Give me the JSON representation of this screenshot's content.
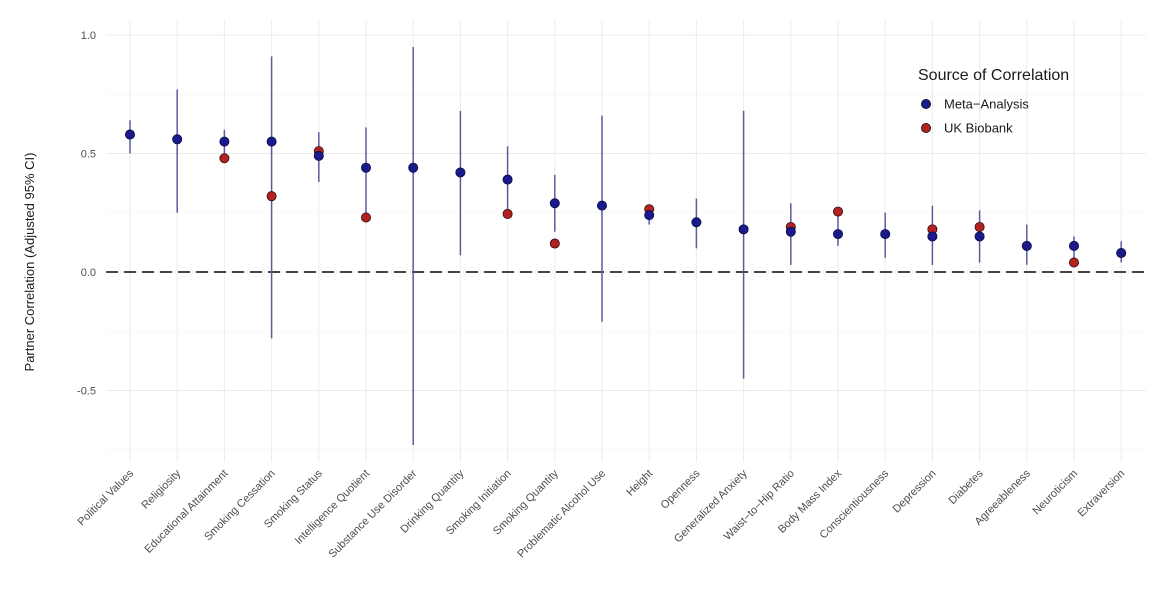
{
  "chart_data": {
    "type": "scatter",
    "ylabel": "Partner Correlation (Adjusted 95% CI)",
    "xlabel": "",
    "ylim": [
      -0.8,
      1.02
    ],
    "yticks": [
      {
        "value": 1.0,
        "label": "1.0"
      },
      {
        "value": 0.5,
        "label": "0.5"
      },
      {
        "value": 0.0,
        "label": "0.0"
      },
      {
        "value": -0.5,
        "label": "-0.5"
      }
    ],
    "reference_line": 0.0,
    "grid": true,
    "legend": {
      "title": "Source of Correlation",
      "placement": "top-right",
      "entries": [
        {
          "label": "Meta−Analysis",
          "color": "#1a1a8c"
        },
        {
          "label": "UK Biobank",
          "color": "#b22222"
        }
      ]
    },
    "colors": {
      "meta": "#1a1a8c",
      "ukb": "#b22222",
      "ci_line": "#5a5aa0",
      "ref_line": "#444444"
    },
    "categories": [
      "Political Values",
      "Religiosity",
      "Educational Attainment",
      "Smoking Cessation",
      "Smoking Status",
      "Intelligence Quotient",
      "Substance Use Disorder",
      "Drinking Quantity",
      "Smoking Initiation",
      "Smoking Quantity",
      "Problematic Alcohol Use",
      "Height",
      "Openness",
      "Generalized Anxiety",
      "Waist−to−Hip Ratio",
      "Body Mass Index",
      "Conscientiousness",
      "Depression",
      "Diabetes",
      "Agreeableness",
      "Neuroticism",
      "Extraversion"
    ],
    "series": [
      {
        "name": "Meta−Analysis",
        "values": [
          0.58,
          0.56,
          0.55,
          0.55,
          0.49,
          0.44,
          0.44,
          0.42,
          0.39,
          0.29,
          0.28,
          0.24,
          0.21,
          0.18,
          0.17,
          0.16,
          0.16,
          0.15,
          0.15,
          0.11,
          0.11,
          0.08
        ],
        "ci_low": [
          0.5,
          0.25,
          0.5,
          -0.28,
          0.38,
          0.23,
          -0.73,
          0.07,
          0.25,
          0.17,
          -0.21,
          0.2,
          0.1,
          -0.45,
          0.03,
          0.11,
          0.06,
          0.03,
          0.04,
          0.03,
          0.05,
          0.04
        ],
        "ci_high": [
          0.64,
          0.77,
          0.6,
          0.91,
          0.59,
          0.61,
          0.95,
          0.68,
          0.53,
          0.41,
          0.66,
          0.28,
          0.31,
          0.68,
          0.29,
          0.26,
          0.25,
          0.28,
          0.26,
          0.2,
          0.15,
          0.13
        ]
      },
      {
        "name": "UK Biobank",
        "values": [
          null,
          null,
          0.48,
          0.32,
          0.51,
          0.23,
          null,
          null,
          0.245,
          0.12,
          null,
          0.265,
          null,
          null,
          0.19,
          0.255,
          null,
          0.18,
          0.19,
          null,
          0.04,
          null
        ]
      }
    ]
  }
}
